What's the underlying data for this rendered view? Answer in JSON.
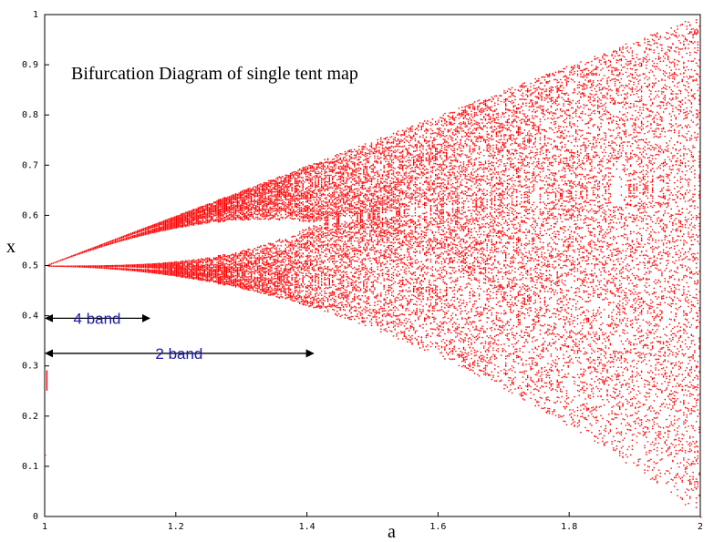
{
  "chart_data": {
    "type": "scatter",
    "title": "Bifurcation Diagram of single tent map",
    "xlabel": "a",
    "ylabel": "x",
    "xlim": [
      1,
      2
    ],
    "ylim": [
      0,
      1
    ],
    "x_ticks": [
      "1",
      "1.2",
      "1.4",
      "1.6",
      "1.8",
      "2"
    ],
    "x_tick_values": [
      1,
      1.2,
      1.4,
      1.6,
      1.8,
      2
    ],
    "y_ticks": [
      "0",
      "0.1",
      "0.2",
      "0.3",
      "0.4",
      "0.5",
      "0.6",
      "0.7",
      "0.8",
      "0.9",
      "1"
    ],
    "y_tick_values": [
      0,
      0.1,
      0.2,
      0.3,
      0.4,
      0.5,
      0.6,
      0.7,
      0.8,
      0.9,
      1
    ],
    "grid": false,
    "series": [
      {
        "color": "#ff0000",
        "map": "tent",
        "a_range": [
          1,
          2
        ],
        "x_range": [
          0,
          1
        ]
      }
    ],
    "annotations": [
      {
        "text": "4 band",
        "a_start": 1,
        "a_end": 1.16,
        "x": 0.395
      },
      {
        "text": "2 band",
        "a_start": 1,
        "a_end": 1.41,
        "x": 0.325
      }
    ]
  }
}
